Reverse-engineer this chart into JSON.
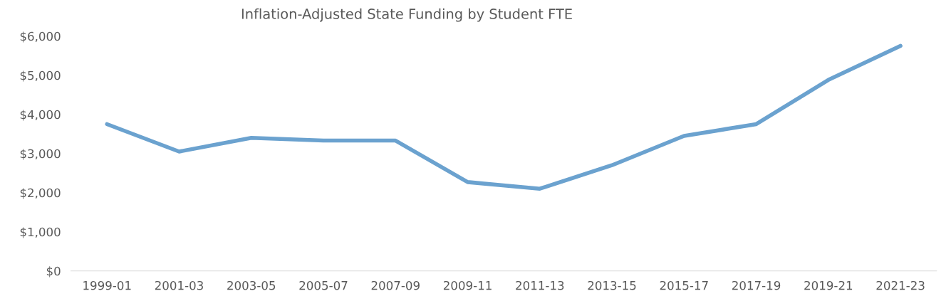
{
  "chart_data": {
    "type": "line",
    "title": "Inflation-Adjusted State Funding by Student FTE",
    "categories": [
      "1999-01",
      "2001-03",
      "2003-05",
      "2005-07",
      "2007-09",
      "2009-11",
      "2011-13",
      "2013-15",
      "2015-17",
      "2017-19",
      "2019-21",
      "2021-23"
    ],
    "series": [
      {
        "color": "#6ba2cf",
        "values": [
          3750,
          3050,
          3400,
          3330,
          3330,
          2270,
          2100,
          2700,
          3450,
          3750,
          4880,
          5750
        ]
      }
    ],
    "ylim": [
      0,
      6000
    ],
    "yticks": [
      {
        "value": 0,
        "label": "$0"
      },
      {
        "value": 1000,
        "label": "$1,000"
      },
      {
        "value": 2000,
        "label": "$2,000"
      },
      {
        "value": 3000,
        "label": "$3,000"
      },
      {
        "value": 4000,
        "label": "$4,000"
      },
      {
        "value": 5000,
        "label": "$5,000"
      },
      {
        "value": 6000,
        "label": "$6,000"
      }
    ],
    "grid": false,
    "legend": false,
    "marker": "none",
    "line_style": "solid"
  }
}
